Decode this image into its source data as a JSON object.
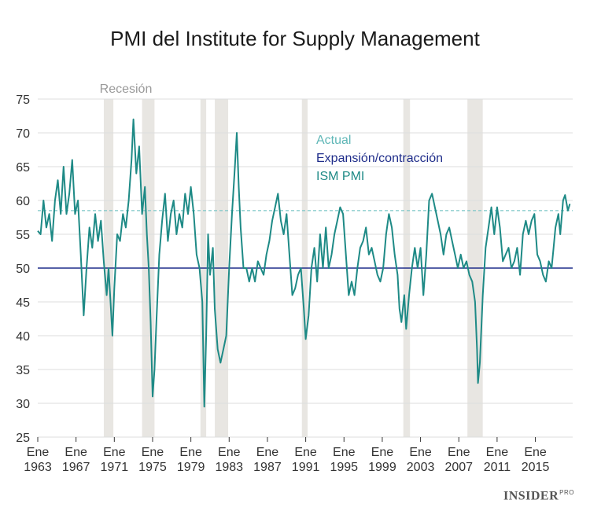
{
  "colors": {
    "line": "#1e8a86",
    "current_line": "#7cc7c7",
    "threshold_line": "#1f2d8a",
    "recession_band": "#e8e6e2",
    "grid": "#dddddd",
    "recession_label": "#9a9a9a",
    "legend_actual": "#5fb7b7",
    "legend_expansion": "#1f2d8a",
    "legend_pmi": "#1e8a86"
  },
  "chart_data": {
    "type": "line",
    "title": "PMI del Institute for Supply Management",
    "recession_label": "Recesión",
    "xlim": [
      1963.0,
      2018.9
    ],
    "ylim": [
      25,
      75
    ],
    "yticks": [
      25,
      30,
      35,
      40,
      45,
      50,
      55,
      60,
      65,
      70,
      75
    ],
    "xticks": [
      {
        "value": 1963,
        "line1": "Ene",
        "line2": "1963"
      },
      {
        "value": 1967,
        "line1": "Ene",
        "line2": "1967"
      },
      {
        "value": 1971,
        "line1": "Ene",
        "line2": "1971"
      },
      {
        "value": 1975,
        "line1": "Ene",
        "line2": "1975"
      },
      {
        "value": 1979,
        "line1": "Ene",
        "line2": "1979"
      },
      {
        "value": 1983,
        "line1": "Ene",
        "line2": "1983"
      },
      {
        "value": 1987,
        "line1": "Ene",
        "line2": "1987"
      },
      {
        "value": 1991,
        "line1": "Ene",
        "line2": "1991"
      },
      {
        "value": 1995,
        "line1": "Ene",
        "line2": "1995"
      },
      {
        "value": 1999,
        "line1": "Ene",
        "line2": "1999"
      },
      {
        "value": 2003,
        "line1": "Ene",
        "line2": "2003"
      },
      {
        "value": 2007,
        "line1": "Ene",
        "line2": "2007"
      },
      {
        "value": 2011,
        "line1": "Ene",
        "line2": "2011"
      },
      {
        "value": 2015,
        "line1": "Ene",
        "line2": "2015"
      }
    ],
    "recessions": [
      [
        1969.9,
        1970.9
      ],
      [
        1973.9,
        1975.2
      ],
      [
        1980.0,
        1980.6
      ],
      [
        1981.5,
        1982.9
      ],
      [
        1990.6,
        1991.2
      ],
      [
        2001.2,
        2001.9
      ],
      [
        2007.9,
        2009.5
      ]
    ],
    "reference_lines": [
      {
        "name": "Actual",
        "value": 58.5
      },
      {
        "name": "Expansión/contracción",
        "value": 50
      }
    ],
    "series": [
      {
        "name": "ISM PMI",
        "points": [
          [
            1963.0,
            55.5
          ],
          [
            1963.3,
            55.0
          ],
          [
            1963.6,
            60.0
          ],
          [
            1963.9,
            56.0
          ],
          [
            1964.2,
            58.0
          ],
          [
            1964.5,
            54.0
          ],
          [
            1964.8,
            60.0
          ],
          [
            1965.1,
            63.0
          ],
          [
            1965.4,
            58.0
          ],
          [
            1965.7,
            65.0
          ],
          [
            1966.0,
            58.0
          ],
          [
            1966.3,
            61.0
          ],
          [
            1966.6,
            66.0
          ],
          [
            1966.9,
            58.0
          ],
          [
            1967.2,
            60.0
          ],
          [
            1967.5,
            52.0
          ],
          [
            1967.8,
            43.0
          ],
          [
            1968.1,
            50.0
          ],
          [
            1968.4,
            56.0
          ],
          [
            1968.7,
            53.0
          ],
          [
            1969.0,
            58.0
          ],
          [
            1969.3,
            54.0
          ],
          [
            1969.6,
            57.0
          ],
          [
            1969.9,
            51.0
          ],
          [
            1970.2,
            46.0
          ],
          [
            1970.4,
            50.0
          ],
          [
            1970.6,
            45.0
          ],
          [
            1970.8,
            40.0
          ],
          [
            1971.0,
            47.0
          ],
          [
            1971.3,
            55.0
          ],
          [
            1971.6,
            54.0
          ],
          [
            1971.9,
            58.0
          ],
          [
            1972.2,
            56.0
          ],
          [
            1972.5,
            60.0
          ],
          [
            1972.8,
            66.0
          ],
          [
            1973.0,
            72.0
          ],
          [
            1973.3,
            64.0
          ],
          [
            1973.6,
            68.0
          ],
          [
            1973.9,
            58.0
          ],
          [
            1974.2,
            62.0
          ],
          [
            1974.4,
            55.0
          ],
          [
            1974.6,
            50.0
          ],
          [
            1974.8,
            42.0
          ],
          [
            1975.0,
            31.0
          ],
          [
            1975.2,
            35.0
          ],
          [
            1975.4,
            42.0
          ],
          [
            1975.7,
            52.0
          ],
          [
            1976.0,
            57.0
          ],
          [
            1976.3,
            61.0
          ],
          [
            1976.6,
            54.0
          ],
          [
            1976.9,
            58.0
          ],
          [
            1977.2,
            60.0
          ],
          [
            1977.5,
            55.0
          ],
          [
            1977.8,
            58.0
          ],
          [
            1978.1,
            56.0
          ],
          [
            1978.4,
            61.0
          ],
          [
            1978.7,
            58.0
          ],
          [
            1979.0,
            62.0
          ],
          [
            1979.3,
            58.0
          ],
          [
            1979.6,
            52.0
          ],
          [
            1979.9,
            50.0
          ],
          [
            1980.2,
            45.0
          ],
          [
            1980.4,
            29.5
          ],
          [
            1980.6,
            40.0
          ],
          [
            1980.8,
            55.0
          ],
          [
            1981.0,
            49.0
          ],
          [
            1981.3,
            53.0
          ],
          [
            1981.5,
            44.0
          ],
          [
            1981.8,
            38.0
          ],
          [
            1982.1,
            36.0
          ],
          [
            1982.4,
            38.0
          ],
          [
            1982.7,
            40.0
          ],
          [
            1983.0,
            50.0
          ],
          [
            1983.3,
            58.0
          ],
          [
            1983.6,
            65.0
          ],
          [
            1983.8,
            70.0
          ],
          [
            1984.0,
            62.0
          ],
          [
            1984.2,
            56.0
          ],
          [
            1984.5,
            50.0
          ],
          [
            1984.8,
            50.0
          ],
          [
            1985.1,
            48.0
          ],
          [
            1985.4,
            50.0
          ],
          [
            1985.7,
            48.0
          ],
          [
            1986.0,
            51.0
          ],
          [
            1986.3,
            50.0
          ],
          [
            1986.6,
            49.0
          ],
          [
            1986.9,
            52.0
          ],
          [
            1987.2,
            54.0
          ],
          [
            1987.5,
            57.0
          ],
          [
            1987.8,
            59.0
          ],
          [
            1988.1,
            61.0
          ],
          [
            1988.4,
            57.0
          ],
          [
            1988.7,
            55.0
          ],
          [
            1989.0,
            58.0
          ],
          [
            1989.3,
            52.0
          ],
          [
            1989.6,
            46.0
          ],
          [
            1989.9,
            47.0
          ],
          [
            1990.2,
            49.0
          ],
          [
            1990.5,
            50.0
          ],
          [
            1990.8,
            44.0
          ],
          [
            1991.0,
            39.5
          ],
          [
            1991.3,
            43.0
          ],
          [
            1991.6,
            50.0
          ],
          [
            1991.9,
            53.0
          ],
          [
            1992.2,
            48.0
          ],
          [
            1992.5,
            55.0
          ],
          [
            1992.8,
            50.0
          ],
          [
            1993.1,
            56.0
          ],
          [
            1993.4,
            50.0
          ],
          [
            1993.7,
            52.0
          ],
          [
            1994.0,
            55.0
          ],
          [
            1994.3,
            57.0
          ],
          [
            1994.6,
            59.0
          ],
          [
            1994.9,
            58.0
          ],
          [
            1995.2,
            52.0
          ],
          [
            1995.5,
            46.0
          ],
          [
            1995.8,
            48.0
          ],
          [
            1996.1,
            46.0
          ],
          [
            1996.4,
            50.0
          ],
          [
            1996.7,
            53.0
          ],
          [
            1997.0,
            54.0
          ],
          [
            1997.3,
            56.0
          ],
          [
            1997.6,
            52.0
          ],
          [
            1997.9,
            53.0
          ],
          [
            1998.2,
            51.0
          ],
          [
            1998.5,
            49.0
          ],
          [
            1998.8,
            48.0
          ],
          [
            1999.1,
            50.0
          ],
          [
            1999.4,
            55.0
          ],
          [
            1999.7,
            58.0
          ],
          [
            2000.0,
            56.0
          ],
          [
            2000.3,
            52.0
          ],
          [
            2000.6,
            49.0
          ],
          [
            2000.8,
            44.0
          ],
          [
            2001.0,
            42.0
          ],
          [
            2001.3,
            46.0
          ],
          [
            2001.5,
            41.0
          ],
          [
            2001.8,
            46.0
          ],
          [
            2002.1,
            50.0
          ],
          [
            2002.4,
            53.0
          ],
          [
            2002.7,
            50.0
          ],
          [
            2003.0,
            53.0
          ],
          [
            2003.3,
            46.0
          ],
          [
            2003.6,
            52.0
          ],
          [
            2003.9,
            60.0
          ],
          [
            2004.2,
            61.0
          ],
          [
            2004.5,
            59.0
          ],
          [
            2004.8,
            57.0
          ],
          [
            2005.1,
            55.0
          ],
          [
            2005.4,
            52.0
          ],
          [
            2005.7,
            55.0
          ],
          [
            2006.0,
            56.0
          ],
          [
            2006.3,
            54.0
          ],
          [
            2006.6,
            52.0
          ],
          [
            2006.9,
            50.0
          ],
          [
            2007.2,
            52.0
          ],
          [
            2007.5,
            50.0
          ],
          [
            2007.8,
            51.0
          ],
          [
            2008.1,
            49.0
          ],
          [
            2008.4,
            48.0
          ],
          [
            2008.7,
            45.0
          ],
          [
            2008.9,
            38.0
          ],
          [
            2009.0,
            33.0
          ],
          [
            2009.2,
            36.0
          ],
          [
            2009.5,
            46.0
          ],
          [
            2009.8,
            53.0
          ],
          [
            2010.1,
            56.0
          ],
          [
            2010.4,
            59.0
          ],
          [
            2010.7,
            55.0
          ],
          [
            2011.0,
            59.0
          ],
          [
            2011.3,
            56.0
          ],
          [
            2011.6,
            51.0
          ],
          [
            2011.9,
            52.0
          ],
          [
            2012.2,
            53.0
          ],
          [
            2012.5,
            50.0
          ],
          [
            2012.8,
            51.0
          ],
          [
            2013.1,
            53.0
          ],
          [
            2013.4,
            49.0
          ],
          [
            2013.7,
            55.0
          ],
          [
            2014.0,
            57.0
          ],
          [
            2014.3,
            55.0
          ],
          [
            2014.6,
            57.0
          ],
          [
            2014.9,
            58.0
          ],
          [
            2015.2,
            52.0
          ],
          [
            2015.5,
            51.0
          ],
          [
            2015.8,
            49.0
          ],
          [
            2016.1,
            48.0
          ],
          [
            2016.4,
            51.0
          ],
          [
            2016.7,
            50.0
          ],
          [
            2016.9,
            53.0
          ],
          [
            2017.1,
            56.0
          ],
          [
            2017.4,
            58.0
          ],
          [
            2017.6,
            55.0
          ],
          [
            2017.9,
            60.0
          ],
          [
            2018.1,
            60.8
          ],
          [
            2018.4,
            58.5
          ],
          [
            2018.6,
            59.5
          ]
        ]
      }
    ]
  },
  "legend": {
    "actual": "Actual",
    "expansion": "Expansión/contracción",
    "pmi": "ISM PMI"
  },
  "brand": {
    "name": "INSIDER",
    "suffix": "PRO"
  }
}
